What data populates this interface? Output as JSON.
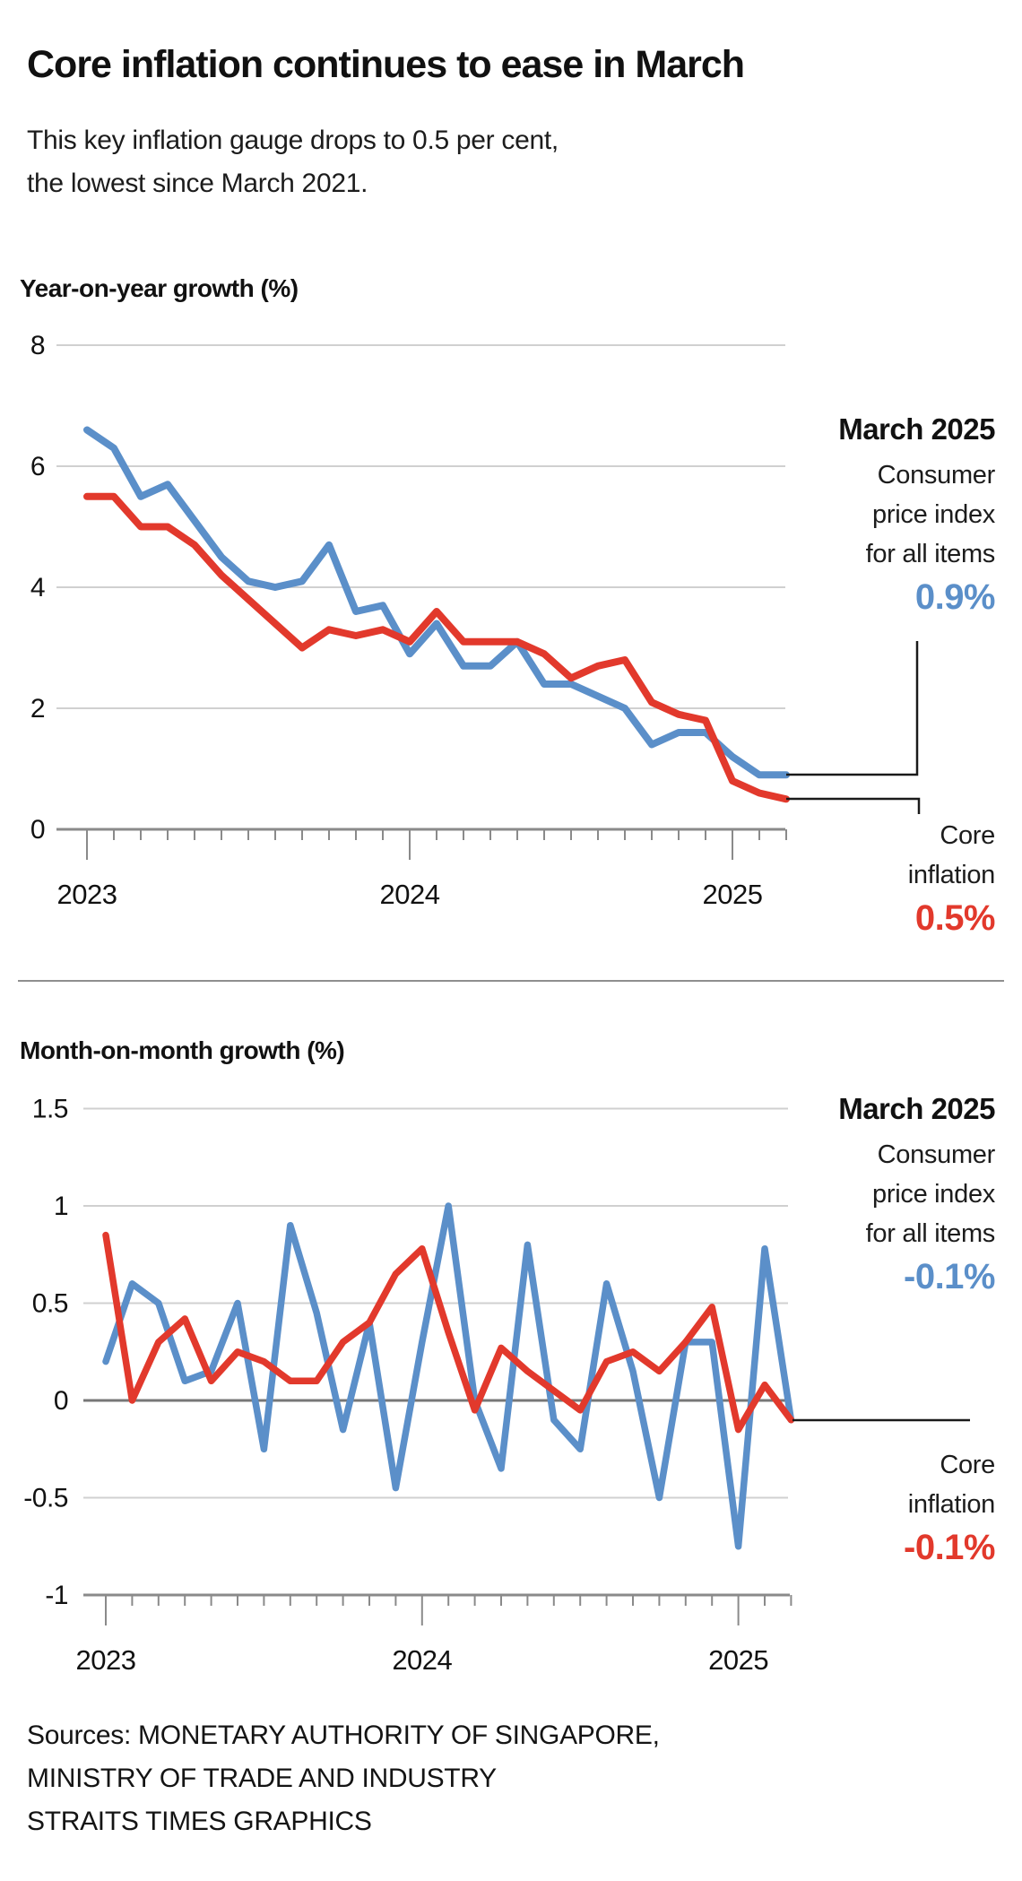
{
  "title": "Core inflation continues to ease in March",
  "subtitle_line1": "This key inflation gauge drops to 0.5 per cent,",
  "subtitle_line2": "the lowest since March 2021.",
  "colors": {
    "cpi_blue": "#5b8fc9",
    "core_red": "#e2392c",
    "connector": "#1a1a1a",
    "grid_light": "#d0d0d0",
    "grid_zero": "#777777",
    "axis": "#8a8a8a"
  },
  "chart_data": [
    {
      "id": "chart-yoy",
      "type": "line",
      "title": "Year-on-year growth (%)",
      "x_start": "Jan 2023",
      "x_end": "Mar 2025",
      "year_ticks": [
        "2023",
        "2024",
        "2025"
      ],
      "ylim": [
        0,
        8
      ],
      "yticks": [
        8,
        6,
        4,
        2,
        0
      ],
      "grid": true,
      "legend_position": "right-annotation",
      "series": [
        {
          "name": "Consumer price index for all items",
          "color_key": "cpi_blue",
          "values": [
            6.6,
            6.3,
            5.5,
            5.7,
            5.1,
            4.5,
            4.1,
            4.0,
            4.1,
            4.7,
            3.6,
            3.7,
            2.9,
            3.4,
            2.7,
            2.7,
            3.1,
            2.4,
            2.4,
            2.2,
            2.0,
            1.4,
            1.6,
            1.6,
            1.2,
            0.9,
            0.9
          ]
        },
        {
          "name": "Core inflation",
          "color_key": "core_red",
          "values": [
            5.5,
            5.5,
            5.0,
            5.0,
            4.7,
            4.2,
            3.8,
            3.4,
            3.0,
            3.3,
            3.2,
            3.3,
            3.1,
            3.6,
            3.1,
            3.1,
            3.1,
            2.9,
            2.5,
            2.7,
            2.8,
            2.1,
            1.9,
            1.8,
            0.8,
            0.6,
            0.5
          ]
        }
      ],
      "annotation": {
        "heading": "March 2025",
        "cpi_label_lines": [
          "Consumer",
          "price index",
          "for all items"
        ],
        "cpi_value": "0.9%",
        "core_label_lines": [
          "Core",
          "inflation"
        ],
        "core_value": "0.5%"
      }
    },
    {
      "id": "chart-mom",
      "type": "line",
      "title": "Month-on-month growth (%)",
      "x_start": "Jan 2023",
      "x_end": "Mar 2025",
      "year_ticks": [
        "2023",
        "2024",
        "2025"
      ],
      "ylim": [
        -1,
        1.5
      ],
      "yticks": [
        1.5,
        1,
        0.5,
        0,
        -0.5,
        -1
      ],
      "grid": true,
      "legend_position": "right-annotation",
      "series": [
        {
          "name": "Consumer price index for all items",
          "color_key": "cpi_blue",
          "values": [
            0.2,
            0.6,
            0.5,
            0.1,
            0.15,
            0.5,
            -0.25,
            0.9,
            0.45,
            -0.15,
            0.4,
            -0.45,
            0.3,
            1.0,
            0.0,
            -0.35,
            0.8,
            -0.1,
            -0.25,
            0.6,
            0.15,
            -0.5,
            0.3,
            0.3,
            -0.75,
            0.78,
            -0.1
          ]
        },
        {
          "name": "Core inflation",
          "color_key": "core_red",
          "values": [
            0.85,
            0.0,
            0.3,
            0.42,
            0.1,
            0.25,
            0.2,
            0.1,
            0.1,
            0.3,
            0.4,
            0.65,
            0.78,
            0.35,
            -0.05,
            0.27,
            0.15,
            0.05,
            -0.05,
            0.2,
            0.25,
            0.15,
            0.3,
            0.48,
            -0.15,
            0.08,
            -0.1
          ]
        }
      ],
      "annotation": {
        "heading": "March 2025",
        "cpi_label_lines": [
          "Consumer",
          "price index",
          "for all items"
        ],
        "cpi_value": "-0.1%",
        "core_label_lines": [
          "Core",
          "inflation"
        ],
        "core_value": "-0.1%"
      }
    }
  ],
  "sources": {
    "line1": "Sources: MONETARY AUTHORITY OF SINGAPORE,",
    "line2": "MINISTRY OF TRADE AND INDUSTRY",
    "line3": "STRAITS TIMES GRAPHICS"
  }
}
